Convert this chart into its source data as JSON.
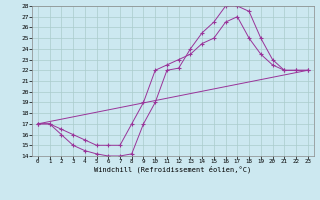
{
  "xlabel": "Windchill (Refroidissement éolien,°C)",
  "background_color": "#cce8f0",
  "grid_color": "#aacccc",
  "line_color": "#993399",
  "xlim": [
    -0.5,
    23.5
  ],
  "ylim": [
    14,
    28
  ],
  "xticks": [
    0,
    1,
    2,
    3,
    4,
    5,
    6,
    7,
    8,
    9,
    10,
    11,
    12,
    13,
    14,
    15,
    16,
    17,
    18,
    19,
    20,
    21,
    22,
    23
  ],
  "yticks": [
    14,
    15,
    16,
    17,
    18,
    19,
    20,
    21,
    22,
    23,
    24,
    25,
    26,
    27,
    28
  ],
  "curve1_x": [
    0,
    1,
    2,
    3,
    4,
    5,
    6,
    7,
    8,
    9,
    10,
    11,
    12,
    13,
    14,
    15,
    16,
    17,
    18,
    19,
    20,
    21,
    22,
    23
  ],
  "curve1_y": [
    17.0,
    17.0,
    16.0,
    15.0,
    14.5,
    14.2,
    14.0,
    14.0,
    14.2,
    17.0,
    19.0,
    22.0,
    22.2,
    24.0,
    25.5,
    26.5,
    28.0,
    28.0,
    27.5,
    25.0,
    23.0,
    22.0,
    22.0,
    22.0
  ],
  "curve2_x": [
    0,
    1,
    2,
    3,
    4,
    5,
    6,
    7,
    8,
    9,
    10,
    11,
    12,
    13,
    14,
    15,
    16,
    17,
    18,
    19,
    20,
    21,
    22,
    23
  ],
  "curve2_y": [
    17.0,
    17.0,
    16.5,
    16.0,
    15.5,
    15.0,
    15.0,
    15.0,
    17.0,
    19.0,
    22.0,
    22.5,
    23.0,
    23.5,
    24.5,
    25.0,
    26.5,
    27.0,
    25.0,
    23.5,
    22.5,
    22.0,
    22.0,
    22.0
  ],
  "curve3_x": [
    0,
    23
  ],
  "curve3_y": [
    17.0,
    22.0
  ]
}
